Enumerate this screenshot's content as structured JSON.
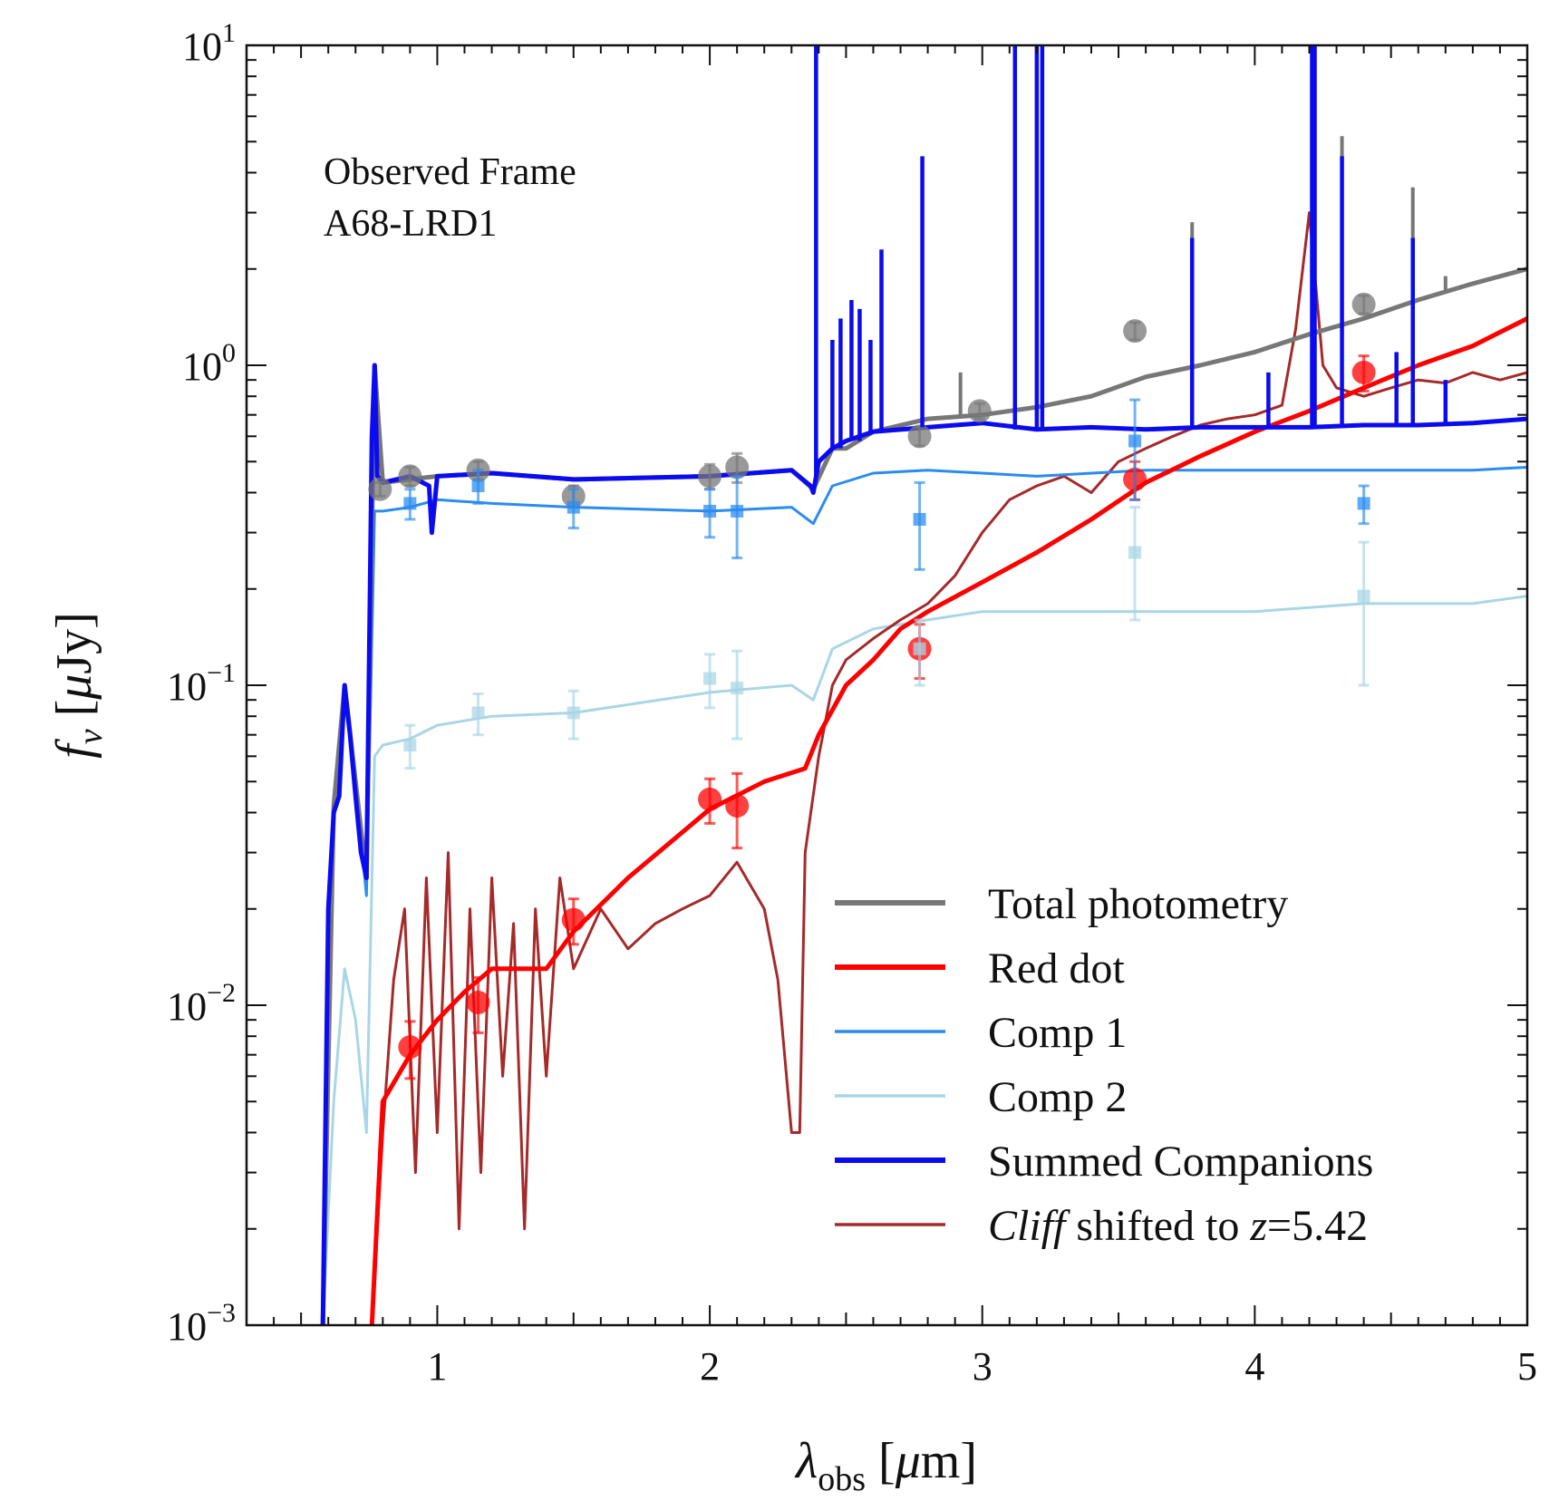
{
  "chart_data": {
    "type": "line",
    "title": "",
    "xlabel": "λ_obs [μm]",
    "ylabel": "f_ν [μJy]",
    "xlim": [
      0.3,
      5.0
    ],
    "ylim": [
      0.001,
      10
    ],
    "yscale": "log",
    "x_ticks": [
      {
        "value": 1,
        "label": "1"
      },
      {
        "value": 2,
        "label": "2"
      },
      {
        "value": 3,
        "label": "3"
      },
      {
        "value": 4,
        "label": "4"
      },
      {
        "value": 5,
        "label": "5"
      }
    ],
    "y_ticks": [
      {
        "value": 0.001,
        "base": "10",
        "exp": "−3"
      },
      {
        "value": 0.01,
        "base": "10",
        "exp": "−2"
      },
      {
        "value": 0.1,
        "base": "10",
        "exp": "−1"
      },
      {
        "value": 1,
        "base": "10",
        "exp": "0"
      },
      {
        "value": 10,
        "base": "10",
        "exp": "1"
      }
    ],
    "annotation_lines": [
      "Observed Frame",
      "A68-LRD1"
    ],
    "legend": {
      "placement": "lower-right",
      "entries": [
        {
          "name": "Total photometry",
          "color": "#777777"
        },
        {
          "name": "Red dot",
          "color": "#ff0000"
        },
        {
          "name": "Comp 1",
          "color": "#2b8cf0"
        },
        {
          "name": "Comp 2",
          "color": "#a9d6e5"
        },
        {
          "name": "Summed Companions",
          "color": "#0b0bf0"
        },
        {
          "name": "Cliff shifted to z=5.42",
          "italic_prefix": "Cliff",
          "suffix_pre": " shifted to ",
          "italic_z": "z",
          "suffix_post": "=5.42",
          "color": "#a52a2a"
        }
      ]
    },
    "series": [
      {
        "name": "Total photometry",
        "color": "#777777",
        "x": [
          0.58,
          0.62,
          0.66,
          0.7,
          0.74,
          0.77,
          0.8,
          0.9,
          1.0,
          1.2,
          1.5,
          2.0,
          2.3,
          2.38,
          2.45,
          2.5,
          2.6,
          2.8,
          3.0,
          3.2,
          3.4,
          3.6,
          3.8,
          4.0,
          4.2,
          4.4,
          4.6,
          4.8,
          5.0
        ],
        "y": [
          0.001,
          0.042,
          0.1,
          0.05,
          0.025,
          1.0,
          0.43,
          0.44,
          0.45,
          0.46,
          0.44,
          0.45,
          0.47,
          0.41,
          0.55,
          0.55,
          0.62,
          0.68,
          0.7,
          0.74,
          0.8,
          0.92,
          1.0,
          1.1,
          1.25,
          1.4,
          1.6,
          1.8,
          2.0
        ]
      },
      {
        "name": "Red dot",
        "color": "#ff0000",
        "x": [
          0.76,
          0.8,
          0.9,
          1.0,
          1.1,
          1.2,
          1.3,
          1.4,
          1.5,
          1.7,
          2.0,
          2.2,
          2.35,
          2.4,
          2.5,
          2.6,
          2.7,
          2.8,
          3.0,
          3.2,
          3.4,
          3.6,
          3.8,
          4.0,
          4.2,
          4.4,
          4.6,
          4.8,
          5.0
        ],
        "y": [
          0.001,
          0.005,
          0.007,
          0.009,
          0.011,
          0.013,
          0.013,
          0.013,
          0.017,
          0.025,
          0.041,
          0.05,
          0.055,
          0.07,
          0.1,
          0.12,
          0.15,
          0.17,
          0.21,
          0.26,
          0.33,
          0.43,
          0.52,
          0.62,
          0.72,
          0.85,
          1.0,
          1.15,
          1.4
        ]
      },
      {
        "name": "Comp 1",
        "color": "#2b8cf0",
        "x": [
          0.58,
          0.62,
          0.66,
          0.7,
          0.74,
          0.77,
          0.8,
          0.9,
          1.0,
          1.2,
          1.5,
          2.0,
          2.3,
          2.38,
          2.45,
          2.6,
          2.8,
          3.0,
          3.2,
          3.6,
          4.0,
          4.4,
          4.8,
          5.0
        ],
        "y": [
          0.001,
          0.04,
          0.09,
          0.05,
          0.022,
          0.35,
          0.35,
          0.36,
          0.38,
          0.37,
          0.36,
          0.35,
          0.36,
          0.32,
          0.42,
          0.46,
          0.47,
          0.46,
          0.45,
          0.47,
          0.47,
          0.47,
          0.47,
          0.48
        ]
      },
      {
        "name": "Comp 2",
        "color": "#a9d6e5",
        "x": [
          0.58,
          0.62,
          0.66,
          0.7,
          0.74,
          0.77,
          0.8,
          0.9,
          1.0,
          1.2,
          1.5,
          2.0,
          2.3,
          2.38,
          2.45,
          2.6,
          2.8,
          3.0,
          3.2,
          3.6,
          4.0,
          4.4,
          4.8,
          5.0
        ],
        "y": [
          0.001,
          0.005,
          0.013,
          0.009,
          0.004,
          0.06,
          0.065,
          0.068,
          0.075,
          0.08,
          0.082,
          0.095,
          0.1,
          0.09,
          0.13,
          0.15,
          0.16,
          0.17,
          0.17,
          0.17,
          0.17,
          0.18,
          0.18,
          0.19
        ]
      },
      {
        "name": "Summed Companions",
        "color": "#0b0bf0",
        "x": [
          0.58,
          0.6,
          0.62,
          0.64,
          0.66,
          0.68,
          0.7,
          0.72,
          0.74,
          0.76,
          0.77,
          0.78,
          0.8,
          0.9,
          0.97,
          0.98,
          1.0,
          1.2,
          1.5,
          2.0,
          2.3,
          2.37,
          2.38,
          2.4,
          2.45,
          2.5,
          2.6,
          2.8,
          3.0,
          3.2,
          3.4,
          3.6,
          3.8,
          4.0,
          4.2,
          4.4,
          4.6,
          4.8,
          5.0
        ],
        "y": [
          0.001,
          0.02,
          0.04,
          0.045,
          0.1,
          0.07,
          0.045,
          0.03,
          0.025,
          0.6,
          1.0,
          0.45,
          0.43,
          0.45,
          0.42,
          0.3,
          0.45,
          0.46,
          0.44,
          0.45,
          0.47,
          0.42,
          0.4,
          0.5,
          0.55,
          0.58,
          0.62,
          0.64,
          0.66,
          0.63,
          0.64,
          0.63,
          0.64,
          0.64,
          0.64,
          0.65,
          0.65,
          0.66,
          0.68
        ]
      },
      {
        "name": "Cliff shifted to z=5.42",
        "color": "#a52a2a",
        "x": [
          0.76,
          0.8,
          0.84,
          0.88,
          0.92,
          0.96,
          1.0,
          1.04,
          1.08,
          1.12,
          1.16,
          1.2,
          1.24,
          1.28,
          1.32,
          1.36,
          1.4,
          1.45,
          1.5,
          1.6,
          1.7,
          1.8,
          1.9,
          2.0,
          2.1,
          2.2,
          2.25,
          2.3,
          2.33,
          2.35,
          2.4,
          2.45,
          2.5,
          2.6,
          2.7,
          2.8,
          2.9,
          3.0,
          3.1,
          3.2,
          3.3,
          3.4,
          3.5,
          3.6,
          3.7,
          3.8,
          3.9,
          4.0,
          4.1,
          4.15,
          4.2,
          4.25,
          4.3,
          4.4,
          4.5,
          4.6,
          4.7,
          4.8,
          4.9,
          5.0
        ],
        "y": [
          0.001,
          0.004,
          0.012,
          0.02,
          0.003,
          0.025,
          0.004,
          0.03,
          0.002,
          0.02,
          0.003,
          0.025,
          0.006,
          0.018,
          0.002,
          0.02,
          0.006,
          0.025,
          0.013,
          0.02,
          0.015,
          0.018,
          0.02,
          0.022,
          0.028,
          0.02,
          0.012,
          0.004,
          0.004,
          0.03,
          0.06,
          0.1,
          0.12,
          0.14,
          0.16,
          0.18,
          0.22,
          0.3,
          0.38,
          0.42,
          0.45,
          0.4,
          0.5,
          0.55,
          0.6,
          0.65,
          0.68,
          0.7,
          0.75,
          1.3,
          3.0,
          1.0,
          0.85,
          0.8,
          0.85,
          0.9,
          0.88,
          0.95,
          0.9,
          0.95
        ]
      }
    ],
    "emission_spikes": [
      {
        "series": "Summed Companions",
        "color": "#0b0bf0",
        "lines": [
          {
            "x": 2.39,
            "base": 0.45,
            "peak": 10
          },
          {
            "x": 2.45,
            "base": 0.55,
            "peak": 1.2
          },
          {
            "x": 2.48,
            "base": 0.55,
            "peak": 1.4
          },
          {
            "x": 2.52,
            "base": 0.58,
            "peak": 1.6
          },
          {
            "x": 2.55,
            "base": 0.58,
            "peak": 1.5
          },
          {
            "x": 2.59,
            "base": 0.62,
            "peak": 1.2
          },
          {
            "x": 2.63,
            "base": 0.62,
            "peak": 2.3
          },
          {
            "x": 2.78,
            "base": 0.64,
            "peak": 4.5
          },
          {
            "x": 3.12,
            "base": 0.63,
            "peak": 10
          },
          {
            "x": 3.2,
            "base": 0.63,
            "peak": 10
          },
          {
            "x": 3.22,
            "base": 0.63,
            "peak": 10
          },
          {
            "x": 3.77,
            "base": 0.64,
            "peak": 2.5
          },
          {
            "x": 4.05,
            "base": 0.64,
            "peak": 0.95
          },
          {
            "x": 4.21,
            "base": 0.64,
            "peak": 10
          },
          {
            "x": 4.22,
            "base": 0.64,
            "peak": 10
          },
          {
            "x": 4.32,
            "base": 0.65,
            "peak": 4.5
          },
          {
            "x": 4.52,
            "base": 0.65,
            "peak": 1.1
          },
          {
            "x": 4.58,
            "base": 0.65,
            "peak": 2.5
          },
          {
            "x": 4.7,
            "base": 0.66,
            "peak": 0.9
          }
        ]
      },
      {
        "series": "Total photometry",
        "color": "#777777",
        "lines": [
          {
            "x": 2.92,
            "base": 0.7,
            "peak": 0.95
          },
          {
            "x": 3.77,
            "base": 1.0,
            "peak": 2.8
          },
          {
            "x": 4.32,
            "base": 1.3,
            "peak": 5.2
          },
          {
            "x": 4.58,
            "base": 1.5,
            "peak": 3.6
          },
          {
            "x": 4.7,
            "base": 1.7,
            "peak": 1.9
          }
        ]
      }
    ],
    "photometry": [
      {
        "series": "Total photometry",
        "color": "#777777",
        "marker": "circle",
        "points": [
          [
            0.79,
            0.41,
            0.02
          ],
          [
            0.9,
            0.45,
            0.03
          ],
          [
            1.15,
            0.47,
            0.03
          ],
          [
            1.5,
            0.39,
            0.03
          ],
          [
            2.0,
            0.45,
            0.04
          ],
          [
            2.1,
            0.48,
            0.05
          ],
          [
            2.77,
            0.6,
            0.04
          ],
          [
            2.99,
            0.72,
            0.04
          ],
          [
            3.56,
            1.28,
            0.08
          ],
          [
            4.4,
            1.55,
            0.1
          ]
        ]
      },
      {
        "series": "Red dot",
        "color": "#ff0000",
        "marker": "circle",
        "points": [
          [
            0.9,
            0.0074,
            0.0015
          ],
          [
            1.15,
            0.0102,
            0.002
          ],
          [
            1.5,
            0.0185,
            0.003
          ],
          [
            2.0,
            0.044,
            0.007
          ],
          [
            2.1,
            0.042,
            0.011
          ],
          [
            2.77,
            0.13,
            0.025
          ],
          [
            3.56,
            0.44,
            0.06
          ],
          [
            4.4,
            0.95,
            0.12
          ]
        ]
      },
      {
        "series": "Comp 1",
        "color": "#2b8cf0",
        "marker": "square",
        "points": [
          [
            0.9,
            0.37,
            0.04
          ],
          [
            1.15,
            0.42,
            0.05
          ],
          [
            1.5,
            0.36,
            0.05
          ],
          [
            2.0,
            0.35,
            0.06
          ],
          [
            2.1,
            0.35,
            0.1
          ],
          [
            2.77,
            0.33,
            0.1
          ],
          [
            3.56,
            0.58,
            0.2
          ],
          [
            4.4,
            0.37,
            0.05
          ]
        ]
      },
      {
        "series": "Comp 2",
        "color": "#a9d6e5",
        "marker": "square",
        "points": [
          [
            0.9,
            0.065,
            0.01
          ],
          [
            1.15,
            0.082,
            0.012
          ],
          [
            1.5,
            0.082,
            0.014
          ],
          [
            2.0,
            0.105,
            0.02
          ],
          [
            2.1,
            0.098,
            0.03
          ],
          [
            2.77,
            0.13,
            0.03
          ],
          [
            3.56,
            0.26,
            0.1
          ],
          [
            4.4,
            0.19,
            0.09
          ]
        ]
      }
    ]
  }
}
